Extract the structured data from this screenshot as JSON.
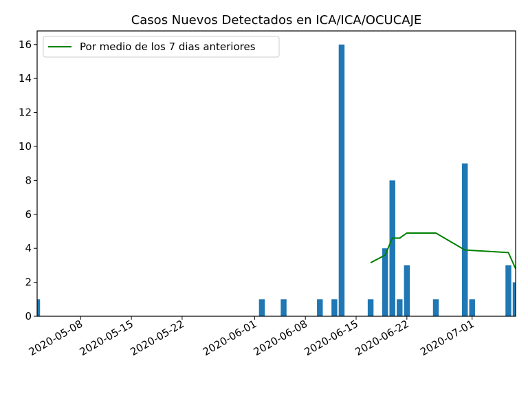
{
  "chart_data": {
    "type": "bar",
    "title": "Casos Nuevos Detectados en ICA/ICA/OCUCAJE",
    "xlabel": "",
    "ylabel": "",
    "x_range": [
      "2020-05-02",
      "2020-07-07"
    ],
    "ylim": [
      0,
      16.8
    ],
    "yticks": [
      0,
      2,
      4,
      6,
      8,
      10,
      12,
      14,
      16
    ],
    "xticks": [
      "2020-05-08",
      "2020-05-15",
      "2020-05-22",
      "2020-06-01",
      "2020-06-08",
      "2020-06-15",
      "2020-06-22",
      "2020-07-01"
    ],
    "grid": false,
    "legend": {
      "placement": "top-left"
    },
    "series": [
      {
        "kind": "bar",
        "color": "#1f77b4",
        "points": [
          {
            "x": "2020-05-02",
            "y": 1
          },
          {
            "x": "2020-06-02",
            "y": 1
          },
          {
            "x": "2020-06-05",
            "y": 1
          },
          {
            "x": "2020-06-10",
            "y": 1
          },
          {
            "x": "2020-06-12",
            "y": 1
          },
          {
            "x": "2020-06-13",
            "y": 16
          },
          {
            "x": "2020-06-17",
            "y": 1
          },
          {
            "x": "2020-06-19",
            "y": 4
          },
          {
            "x": "2020-06-20",
            "y": 8
          },
          {
            "x": "2020-06-21",
            "y": 1
          },
          {
            "x": "2020-06-22",
            "y": 3
          },
          {
            "x": "2020-06-26",
            "y": 1
          },
          {
            "x": "2020-06-30",
            "y": 9
          },
          {
            "x": "2020-07-01",
            "y": 1
          },
          {
            "x": "2020-07-06",
            "y": 3
          },
          {
            "x": "2020-07-07",
            "y": 2
          }
        ]
      },
      {
        "kind": "line",
        "name": "Por medio de los 7 dias anteriores",
        "color": "#008000",
        "points": [
          {
            "x": "2020-06-17",
            "y": 3.15
          },
          {
            "x": "2020-06-19",
            "y": 3.6
          },
          {
            "x": "2020-06-20",
            "y": 4.6
          },
          {
            "x": "2020-06-21",
            "y": 4.6
          },
          {
            "x": "2020-06-22",
            "y": 4.9
          },
          {
            "x": "2020-06-26",
            "y": 4.9
          },
          {
            "x": "2020-06-30",
            "y": 3.9
          },
          {
            "x": "2020-07-06",
            "y": 3.75
          },
          {
            "x": "2020-07-07",
            "y": 2.8
          }
        ]
      }
    ]
  }
}
